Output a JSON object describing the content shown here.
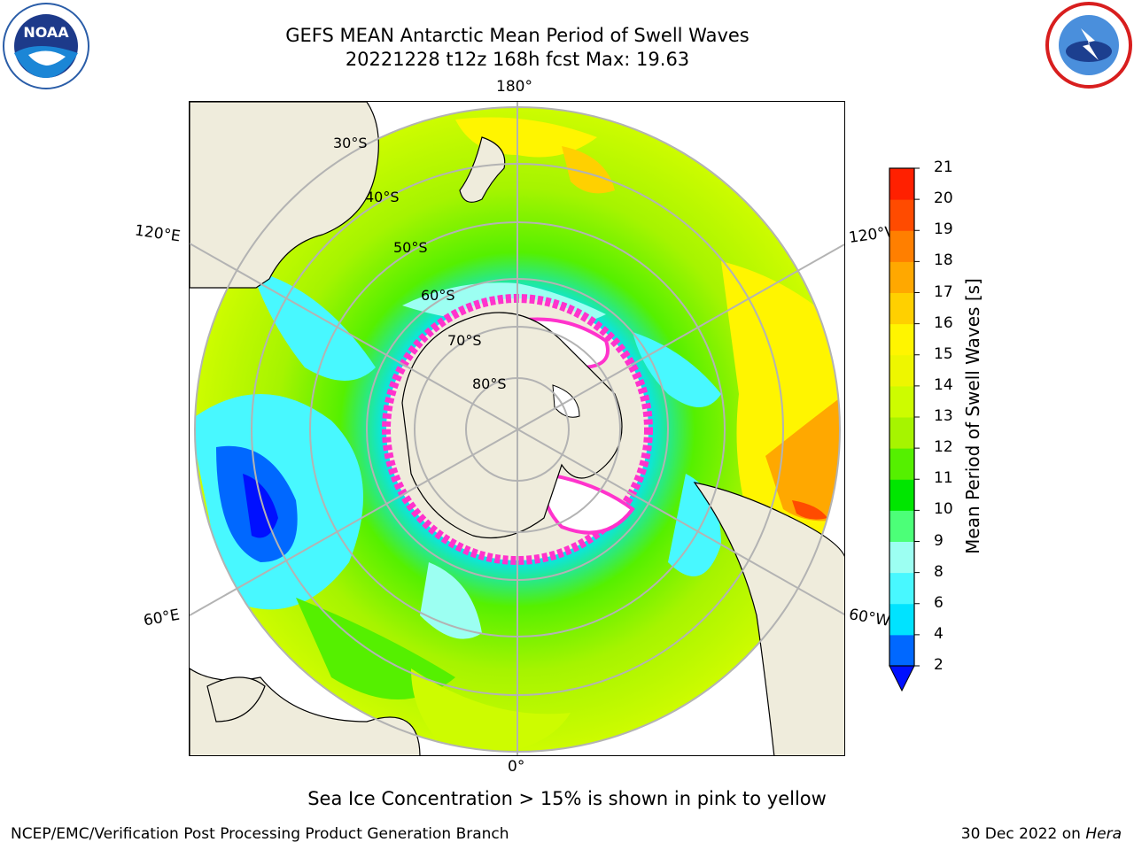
{
  "header": {
    "title_line1": "GEFS MEAN Antarctic Mean Period of Swell Waves",
    "title_line2": "20221228 t12z 168h fcst   Max: 19.63"
  },
  "logos": {
    "left": {
      "icon": "noaa-logo-icon",
      "text": "NOAA"
    },
    "right": {
      "icon": "nws-logo-icon"
    }
  },
  "map": {
    "projection": "south-polar-stereographic",
    "lon_labels": {
      "top": "180°",
      "bottom": "0°",
      "left_upper": "120°E",
      "left_lower": "60°E",
      "right_upper": "120°W",
      "right_lower": "60°W"
    },
    "lat_labels": [
      "30°S",
      "40°S",
      "50°S",
      "60°S",
      "70°S",
      "80°S"
    ],
    "colors": {
      "land": "#efecdc",
      "ice_edge": "#ff33cc",
      "ice_interior": "#ffffff",
      "grid": "#b3b3b3"
    }
  },
  "colorbar": {
    "label": "Mean Period of Swell Waves [s]",
    "ticks": [
      "2",
      "4",
      "6",
      "8",
      "9",
      "10",
      "11",
      "12",
      "13",
      "14",
      "15",
      "16",
      "17",
      "18",
      "19",
      "20",
      "21"
    ],
    "colors": [
      "#0068ff",
      "#00e3ff",
      "#48f8ff",
      "#9cfff2",
      "#4cff78",
      "#00e600",
      "#55f000",
      "#a6f400",
      "#cdfc00",
      "#eef600",
      "#fff500",
      "#ffd000",
      "#ffa800",
      "#ff7f00",
      "#ff4b00",
      "#ff2000"
    ],
    "under_color": "#0010ff"
  },
  "footer": {
    "note": "Sea Ice Concentration > 15% is shown in pink to yellow",
    "credit": "NCEP/EMC/Verification Post Processing Product Generation Branch",
    "date_text": "30 Dec 2022 on ",
    "machine": "Hera"
  }
}
